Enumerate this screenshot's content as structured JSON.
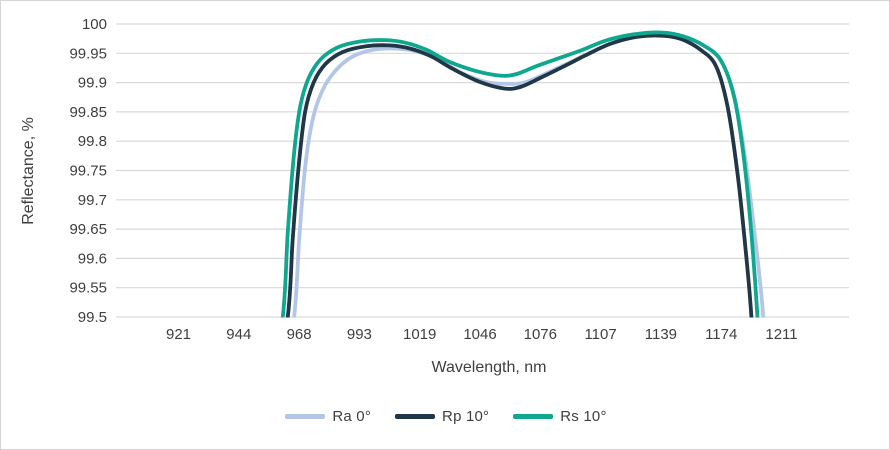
{
  "window": {
    "background": "#ffffff",
    "border_color": "#d4d4d4"
  },
  "chart_data": {
    "type": "line",
    "title": "",
    "xlabel": "Wavelength, nm",
    "ylabel": "Reflectance, %",
    "x_ticks": [
      921,
      944,
      968,
      993,
      1019,
      1046,
      1076,
      1107,
      1139,
      1174,
      1211
    ],
    "x_tick_labels": [
      "921",
      "944",
      "968",
      "993",
      "1019",
      "1046",
      "1076",
      "1107",
      "1139",
      "1174",
      "1211"
    ],
    "y_ticks": [
      100,
      99.95,
      99.9,
      99.85,
      99.8,
      99.75,
      99.7,
      99.65,
      99.6,
      99.55,
      99.5
    ],
    "y_tick_labels": [
      "100",
      "99.95",
      "99.9",
      "99.85",
      "99.8",
      "99.75",
      "99.7",
      "99.65",
      "99.6",
      "99.55",
      "99.5"
    ],
    "ylim": [
      99.5,
      100
    ],
    "grid": "horizontal-only",
    "gridline_color": "#d9d9d9",
    "axis_text_color": "#3f3f3f",
    "legend_position": "bottom-center",
    "series": [
      {
        "name": "Ra 0°",
        "color": "#b4c6e7",
        "points": [
          [
            959.5,
            99.3
          ],
          [
            966,
            99.5
          ],
          [
            968,
            99.63
          ],
          [
            970.5,
            99.755
          ],
          [
            973.5,
            99.835
          ],
          [
            977.5,
            99.885
          ],
          [
            983,
            99.92
          ],
          [
            990,
            99.944
          ],
          [
            999,
            99.956
          ],
          [
            1009,
            99.958
          ],
          [
            1018,
            99.953
          ],
          [
            1027,
            99.941
          ],
          [
            1037,
            99.918
          ],
          [
            1049,
            99.901
          ],
          [
            1060,
            99.898
          ],
          [
            1068,
            99.9
          ],
          [
            1078,
            99.914
          ],
          [
            1089,
            99.931
          ],
          [
            1101,
            99.95
          ],
          [
            1114,
            99.968
          ],
          [
            1128,
            99.979
          ],
          [
            1142,
            99.981
          ],
          [
            1153,
            99.977
          ],
          [
            1164,
            99.963
          ],
          [
            1173,
            99.941
          ],
          [
            1181,
            99.888
          ],
          [
            1188,
            99.785
          ],
          [
            1194,
            99.655
          ],
          [
            1199.5,
            99.51
          ],
          [
            1201.5,
            99.38
          ]
        ]
      },
      {
        "name": "Rp 10°",
        "color": "#1f3747",
        "points": [
          [
            957,
            99.3
          ],
          [
            963.5,
            99.5
          ],
          [
            965.5,
            99.635
          ],
          [
            968,
            99.765
          ],
          [
            970.5,
            99.85
          ],
          [
            974,
            99.9
          ],
          [
            979,
            99.932
          ],
          [
            986,
            99.952
          ],
          [
            996,
            99.962
          ],
          [
            1006,
            99.9635
          ],
          [
            1015,
            99.958
          ],
          [
            1024,
            99.945
          ],
          [
            1034,
            99.923
          ],
          [
            1046,
            99.901
          ],
          [
            1058,
            99.89
          ],
          [
            1066,
            99.8925
          ],
          [
            1076,
            99.908
          ],
          [
            1087,
            99.926
          ],
          [
            1099,
            99.946
          ],
          [
            1112,
            99.966
          ],
          [
            1126,
            99.978
          ],
          [
            1140,
            99.98
          ],
          [
            1151,
            99.974
          ],
          [
            1162,
            99.956
          ],
          [
            1171,
            99.928
          ],
          [
            1178,
            99.858
          ],
          [
            1184,
            99.745
          ],
          [
            1189,
            99.615
          ],
          [
            1192.5,
            99.5
          ],
          [
            1194.5,
            99.38
          ]
        ]
      },
      {
        "name": "Rs 10°",
        "color": "#0fa78e",
        "points": [
          [
            955,
            99.3
          ],
          [
            961.5,
            99.5
          ],
          [
            963.5,
            99.645
          ],
          [
            966,
            99.78
          ],
          [
            968.5,
            99.86
          ],
          [
            972,
            99.908
          ],
          [
            977,
            99.94
          ],
          [
            984,
            99.96
          ],
          [
            993,
            99.97
          ],
          [
            1004,
            99.9725
          ],
          [
            1013,
            99.968
          ],
          [
            1022,
            99.956
          ],
          [
            1032,
            99.936
          ],
          [
            1044,
            99.92
          ],
          [
            1056,
            99.912
          ],
          [
            1064,
            99.9145
          ],
          [
            1074,
            99.928
          ],
          [
            1085,
            99.941
          ],
          [
            1097,
            99.955
          ],
          [
            1110,
            99.972
          ],
          [
            1124,
            99.982
          ],
          [
            1139,
            99.9855
          ],
          [
            1152,
            99.979
          ],
          [
            1164,
            99.963
          ],
          [
            1174,
            99.937
          ],
          [
            1182,
            99.875
          ],
          [
            1187.5,
            99.78
          ],
          [
            1192,
            99.66
          ],
          [
            1196,
            99.51
          ],
          [
            1198,
            99.38
          ]
        ]
      }
    ]
  }
}
